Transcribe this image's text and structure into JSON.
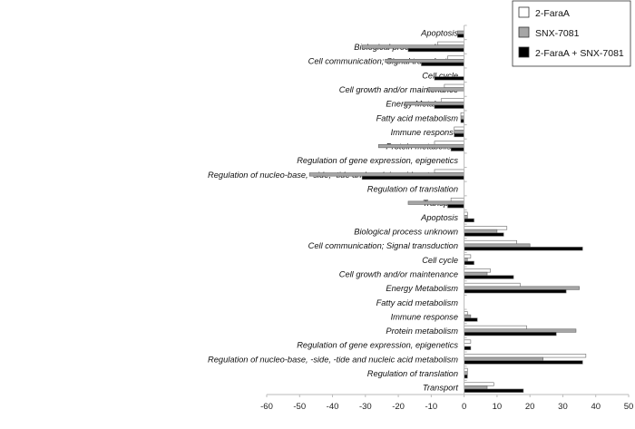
{
  "chart_data": {
    "type": "bar",
    "orientation": "horizontal",
    "title": "",
    "xlabel": "",
    "ylabel": "",
    "xlim": [
      -60,
      50
    ],
    "xticks": [
      -60,
      -50,
      -40,
      -30,
      -20,
      -10,
      0,
      10,
      20,
      30,
      40,
      50
    ],
    "grid": false,
    "legend_position": "top-right",
    "categories": [
      "Apoptosis",
      "Biological process unknown",
      "Cell communication; Signal transduction",
      "Cell cycle",
      "Cell growth and/or maintenance",
      "Energy Metabolism",
      "Fatty acid metabolism",
      "Immune response",
      "Protein metabolism",
      "Regulation of gene expression, epigenetics",
      "Regulation of nucleo-base, -side, -tide and nucleic acid metabolism",
      "Regulation of translation",
      "Transport",
      "Apoptosis",
      "Biological process unknown",
      "Cell communication; Signal transduction",
      "Cell cycle",
      "Cell growth and/or maintenance",
      "Energy Metabolism",
      "Fatty acid metabolism",
      "Immune response",
      "Protein metabolism",
      "Regulation of gene expression, epigenetics",
      "Regulation of nucleo-base, -side, -tide and nucleic acid metabolism",
      "Regulation of translation",
      "Transport"
    ],
    "series": [
      {
        "name": "2-FaraA",
        "color": "#ffffff",
        "values": [
          0,
          -8,
          -5,
          0,
          -6,
          -7,
          -1,
          -3,
          -9,
          0,
          -9,
          0,
          -4,
          1,
          13,
          16,
          2,
          8,
          17,
          0,
          1,
          19,
          2,
          37,
          1,
          9
        ]
      },
      {
        "name": "SNX-7081",
        "color": "#a6a6a6",
        "values": [
          -2,
          -31,
          -24,
          0,
          -11,
          -18,
          -1,
          -3,
          -26,
          0,
          -47,
          0,
          -17,
          1,
          10,
          20,
          1,
          7,
          35,
          0,
          2,
          34,
          0,
          24,
          1,
          7
        ]
      },
      {
        "name": "2-FaraA + SNX-7081",
        "color": "#000000",
        "values": [
          -2,
          -17,
          -13,
          -9,
          0,
          -9,
          -1,
          -3,
          -4,
          0,
          -31,
          0,
          -5,
          3,
          12,
          36,
          3,
          15,
          31,
          0,
          4,
          28,
          2,
          36,
          1,
          18
        ]
      }
    ]
  }
}
